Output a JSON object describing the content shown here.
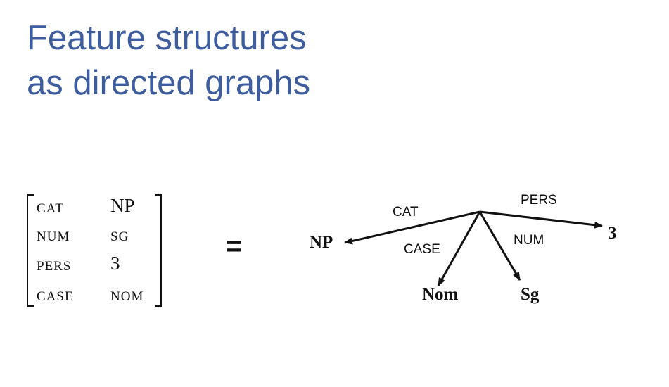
{
  "slide": {
    "title_line1": "Feature structures",
    "title_line2": "as directed graphs",
    "equals_sign": "="
  },
  "avm": {
    "rows": [
      {
        "feature": "CAT",
        "value": "NP"
      },
      {
        "feature": "NUM",
        "value": "SG"
      },
      {
        "feature": "PERS",
        "value": "3"
      },
      {
        "feature": "CASE",
        "value": "NOM"
      }
    ]
  },
  "graph": {
    "edges": [
      {
        "label": "CAT",
        "target": "NP"
      },
      {
        "label": "CASE",
        "target": "Nom"
      },
      {
        "label": "NUM",
        "target": "Sg"
      },
      {
        "label": "PERS",
        "target": "3"
      }
    ]
  },
  "colors": {
    "title": "#3e5d9f",
    "ink": "#111111",
    "background": "#ffffff"
  }
}
